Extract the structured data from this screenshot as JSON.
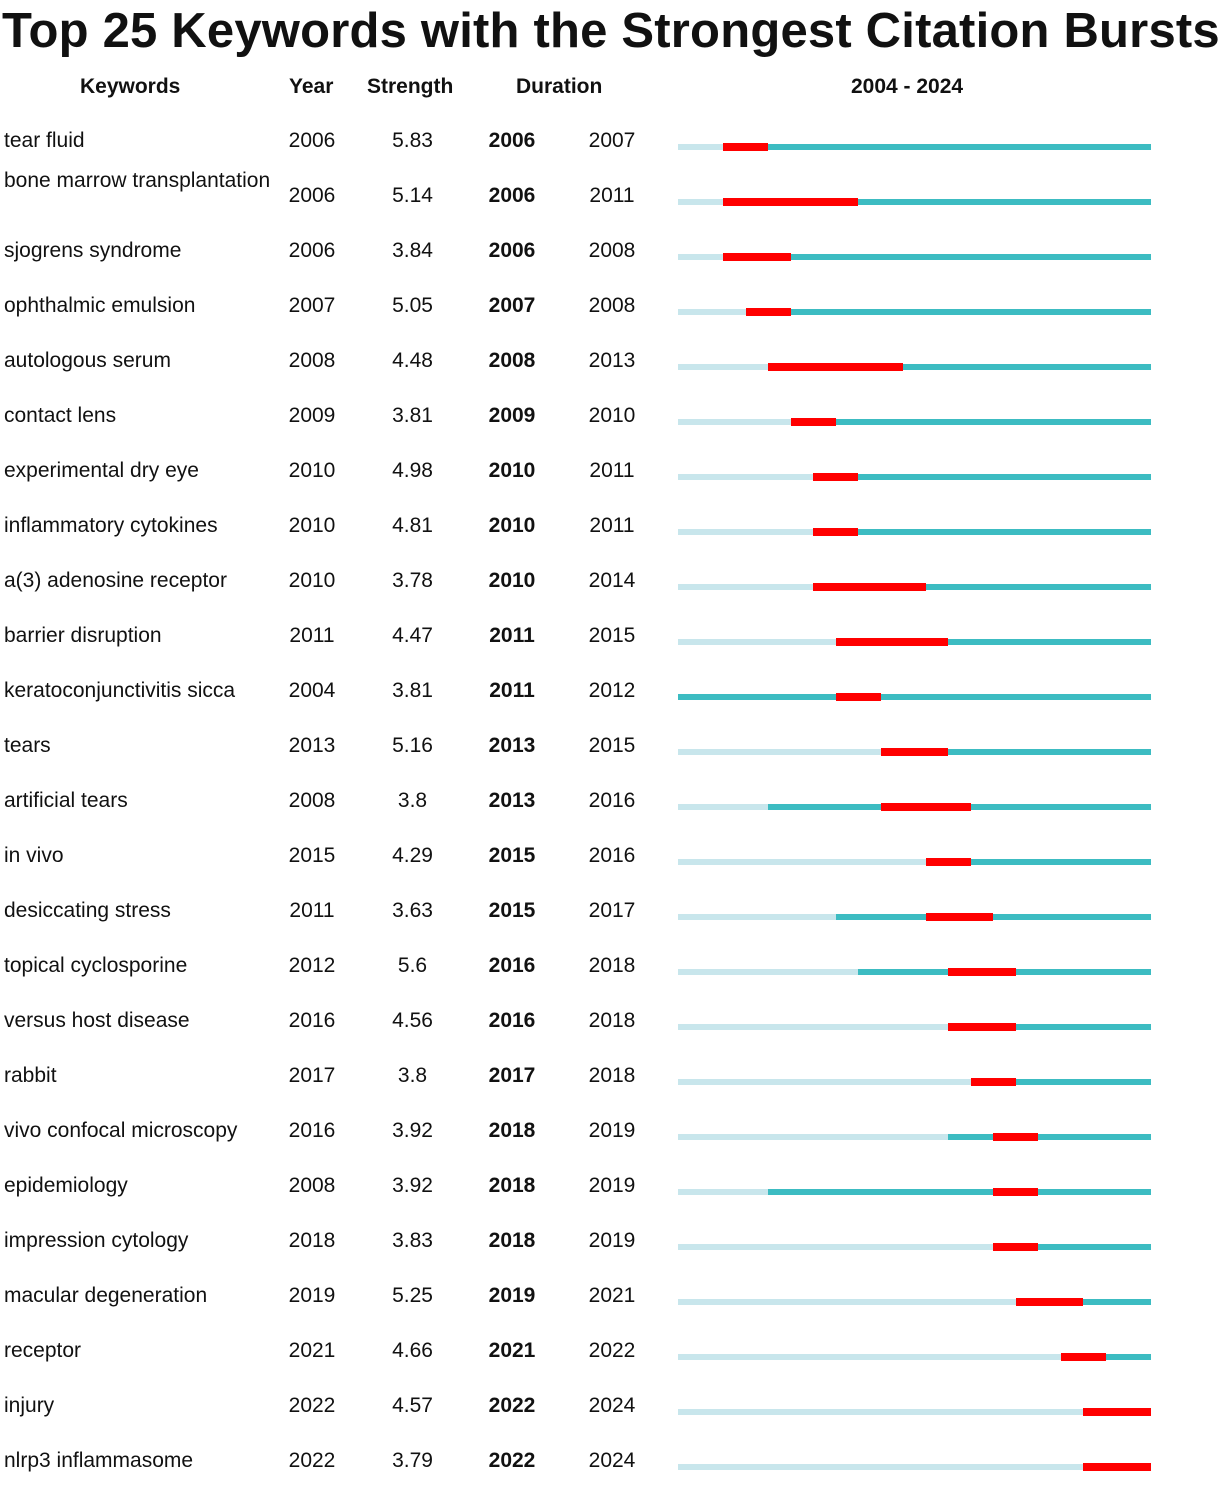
{
  "chart_data": {
    "type": "timeline",
    "title": "Top 25 Keywords with the Strongest Citation Bursts",
    "columns": {
      "keywords": "Keywords",
      "year": "Year",
      "strength": "Strength",
      "duration": "Duration",
      "range": "2004 - 2024"
    },
    "range_start": 2004,
    "range_end": 2024,
    "colors": {
      "pre": "#c8e6ec",
      "active": "#3cbcc2",
      "burst": "#ff0000"
    },
    "rows": [
      {
        "keyword": "tear fluid",
        "year": 2006,
        "strength": "5.83",
        "begin": 2006,
        "end": 2007
      },
      {
        "keyword": "bone marrow transplantation",
        "year": 2006,
        "strength": "5.14",
        "begin": 2006,
        "end": 2011
      },
      {
        "keyword": "sjogrens syndrome",
        "year": 2006,
        "strength": "3.84",
        "begin": 2006,
        "end": 2008
      },
      {
        "keyword": "ophthalmic emulsion",
        "year": 2007,
        "strength": "5.05",
        "begin": 2007,
        "end": 2008
      },
      {
        "keyword": "autologous serum",
        "year": 2008,
        "strength": "4.48",
        "begin": 2008,
        "end": 2013
      },
      {
        "keyword": "contact lens",
        "year": 2009,
        "strength": "3.81",
        "begin": 2009,
        "end": 2010
      },
      {
        "keyword": "experimental dry eye",
        "year": 2010,
        "strength": "4.98",
        "begin": 2010,
        "end": 2011
      },
      {
        "keyword": "inflammatory cytokines",
        "year": 2010,
        "strength": "4.81",
        "begin": 2010,
        "end": 2011
      },
      {
        "keyword": "a(3) adenosine receptor",
        "year": 2010,
        "strength": "3.78",
        "begin": 2010,
        "end": 2014
      },
      {
        "keyword": "barrier disruption",
        "year": 2011,
        "strength": "4.47",
        "begin": 2011,
        "end": 2015
      },
      {
        "keyword": "keratoconjunctivitis sicca",
        "year": 2004,
        "strength": "3.81",
        "begin": 2011,
        "end": 2012
      },
      {
        "keyword": "tears",
        "year": 2013,
        "strength": "5.16",
        "begin": 2013,
        "end": 2015
      },
      {
        "keyword": "artificial tears",
        "year": 2008,
        "strength": "3.8",
        "begin": 2013,
        "end": 2016
      },
      {
        "keyword": "in vivo",
        "year": 2015,
        "strength": "4.29",
        "begin": 2015,
        "end": 2016
      },
      {
        "keyword": "desiccating stress",
        "year": 2011,
        "strength": "3.63",
        "begin": 2015,
        "end": 2017
      },
      {
        "keyword": "topical cyclosporine",
        "year": 2012,
        "strength": "5.6",
        "begin": 2016,
        "end": 2018
      },
      {
        "keyword": "versus host disease",
        "year": 2016,
        "strength": "4.56",
        "begin": 2016,
        "end": 2018
      },
      {
        "keyword": "rabbit",
        "year": 2017,
        "strength": "3.8",
        "begin": 2017,
        "end": 2018
      },
      {
        "keyword": "vivo confocal microscopy",
        "year": 2016,
        "strength": "3.92",
        "begin": 2018,
        "end": 2019
      },
      {
        "keyword": "epidemiology",
        "year": 2008,
        "strength": "3.92",
        "begin": 2018,
        "end": 2019
      },
      {
        "keyword": "impression cytology",
        "year": 2018,
        "strength": "3.83",
        "begin": 2018,
        "end": 2019
      },
      {
        "keyword": "macular degeneration",
        "year": 2019,
        "strength": "5.25",
        "begin": 2019,
        "end": 2021
      },
      {
        "keyword": "receptor",
        "year": 2021,
        "strength": "4.66",
        "begin": 2021,
        "end": 2022
      },
      {
        "keyword": "injury",
        "year": 2022,
        "strength": "4.57",
        "begin": 2022,
        "end": 2024
      },
      {
        "keyword": "nlrp3 inflammasome",
        "year": 2022,
        "strength": "3.79",
        "begin": 2022,
        "end": 2024
      }
    ]
  }
}
